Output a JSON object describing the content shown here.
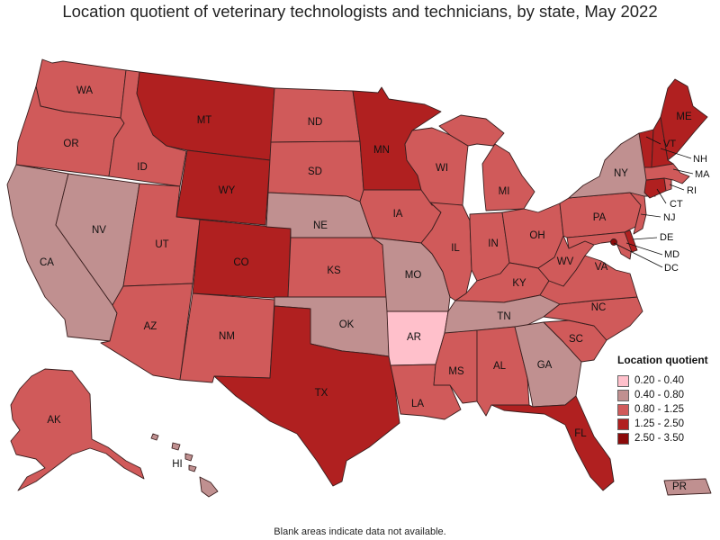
{
  "title": "Location quotient of veterinary technologists and technicians, by state, May 2022",
  "footnote": "Blank areas indicate data not available.",
  "legend": {
    "title": "Location quotient",
    "items": [
      {
        "label": "0.20 - 0.40",
        "color": "#ffc0cb"
      },
      {
        "label": "0.40 - 0.80",
        "color": "#c09090"
      },
      {
        "label": "0.80 - 1.25",
        "color": "#d05a5a"
      },
      {
        "label": "1.25 - 2.50",
        "color": "#b02020"
      },
      {
        "label": "2.50 - 3.50",
        "color": "#8b0a0a"
      }
    ]
  },
  "states": {
    "WA": {
      "label": "WA",
      "bin": 2
    },
    "OR": {
      "label": "OR",
      "bin": 2
    },
    "CA": {
      "label": "CA",
      "bin": 1
    },
    "ID": {
      "label": "ID",
      "bin": 2
    },
    "NV": {
      "label": "NV",
      "bin": 1
    },
    "MT": {
      "label": "MT",
      "bin": 3
    },
    "WY": {
      "label": "WY",
      "bin": 3
    },
    "UT": {
      "label": "UT",
      "bin": 2
    },
    "AZ": {
      "label": "AZ",
      "bin": 2
    },
    "CO": {
      "label": "CO",
      "bin": 3
    },
    "NM": {
      "label": "NM",
      "bin": 2
    },
    "ND": {
      "label": "ND",
      "bin": 2
    },
    "SD": {
      "label": "SD",
      "bin": 2
    },
    "NE": {
      "label": "NE",
      "bin": 1
    },
    "KS": {
      "label": "KS",
      "bin": 2
    },
    "OK": {
      "label": "OK",
      "bin": 1
    },
    "TX": {
      "label": "TX",
      "bin": 3
    },
    "MN": {
      "label": "MN",
      "bin": 3
    },
    "IA": {
      "label": "IA",
      "bin": 2
    },
    "MO": {
      "label": "MO",
      "bin": 1
    },
    "AR": {
      "label": "AR",
      "bin": 0
    },
    "LA": {
      "label": "LA",
      "bin": 2
    },
    "WI": {
      "label": "WI",
      "bin": 2
    },
    "IL": {
      "label": "IL",
      "bin": 2
    },
    "MI": {
      "label": "MI",
      "bin": 2
    },
    "IN": {
      "label": "IN",
      "bin": 2
    },
    "OH": {
      "label": "OH",
      "bin": 2
    },
    "KY": {
      "label": "KY",
      "bin": 2
    },
    "TN": {
      "label": "TN",
      "bin": 1
    },
    "MS": {
      "label": "MS",
      "bin": 2
    },
    "AL": {
      "label": "AL",
      "bin": 2
    },
    "GA": {
      "label": "GA",
      "bin": 1
    },
    "FL": {
      "label": "FL",
      "bin": 3
    },
    "SC": {
      "label": "SC",
      "bin": 2
    },
    "NC": {
      "label": "NC",
      "bin": 2
    },
    "VA": {
      "label": "VA",
      "bin": 2
    },
    "WV": {
      "label": "WV",
      "bin": 2
    },
    "PA": {
      "label": "PA",
      "bin": 2
    },
    "NY": {
      "label": "NY",
      "bin": 1
    },
    "ME": {
      "label": "ME",
      "bin": 3
    },
    "VT": {
      "label": "VT",
      "bin": 3
    },
    "NH": {
      "label": "NH",
      "bin": 3
    },
    "MA": {
      "label": "MA",
      "bin": 2
    },
    "RI": {
      "label": "RI",
      "bin": 2
    },
    "CT": {
      "label": "CT",
      "bin": 3
    },
    "NJ": {
      "label": "NJ",
      "bin": 2
    },
    "DE": {
      "label": "DE",
      "bin": 3
    },
    "MD": {
      "label": "MD",
      "bin": 2
    },
    "DC": {
      "label": "DC",
      "bin": 4
    },
    "AK": {
      "label": "AK",
      "bin": 2
    },
    "HI": {
      "label": "HI",
      "bin": 1
    },
    "PR": {
      "label": "PR",
      "bin": 1
    }
  }
}
